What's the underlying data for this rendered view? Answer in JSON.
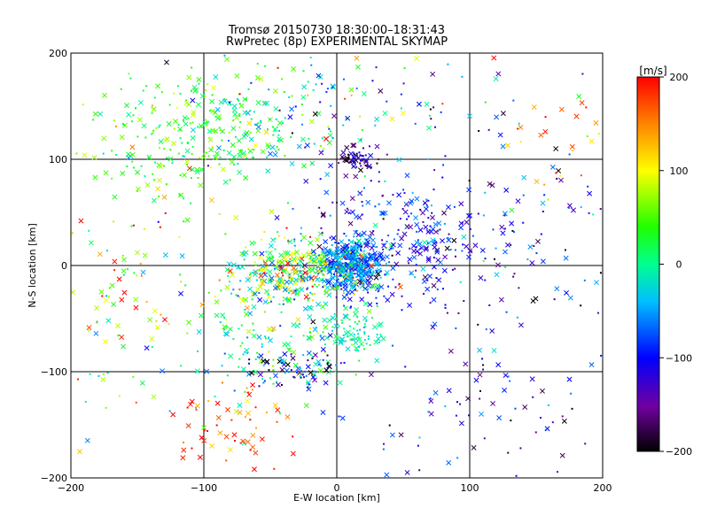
{
  "chart_data": {
    "type": "scatter",
    "title": "Tromsø 20150730 18:30:00–18:31:43",
    "subtitle": "RwPretec (8p) EXPERIMENTAL SKYMAP",
    "xlabel": "E-W location [km]",
    "ylabel": "N-S location [km]",
    "xlim": [
      -200,
      200
    ],
    "ylim": [
      -200,
      200
    ],
    "x_ticks": [
      -200,
      -100,
      0,
      100,
      200
    ],
    "y_ticks": [
      -200,
      -100,
      0,
      100,
      200
    ],
    "x_tick_labels": [
      "−200",
      "−100",
      "0",
      "100",
      "200"
    ],
    "y_tick_labels": [
      "−200",
      "−100",
      "0",
      "100",
      "200"
    ],
    "grid": true,
    "grid_lines": [
      -100,
      0,
      100
    ],
    "colorbar": {
      "label": "[m/s]",
      "range": [
        -200,
        200
      ],
      "ticks": [
        200,
        100,
        0,
        -100,
        -200
      ],
      "tick_labels": [
        "200",
        "100",
        "0",
        "−100",
        "−200"
      ],
      "colormap": "rainbow (black → purple → blue → cyan → green → yellow → red)"
    },
    "marker_types": [
      "x",
      "dot"
    ],
    "clusters": [
      {
        "center": [
          10,
          0
        ],
        "spread": [
          12,
          12
        ],
        "velocity": -55,
        "v_spread": 25,
        "count": 420
      },
      {
        "center": [
          -30,
          -5
        ],
        "spread": [
          25,
          15
        ],
        "velocity": 40,
        "v_spread": 90,
        "count": 320
      },
      {
        "center": [
          40,
          25
        ],
        "spread": [
          35,
          30
        ],
        "velocity": -100,
        "v_spread": 40,
        "count": 240
      },
      {
        "center": [
          -120,
          120
        ],
        "spread": [
          35,
          30
        ],
        "velocity": 40,
        "v_spread": 30,
        "count": 200
      },
      {
        "center": [
          -55,
          130
        ],
        "spread": [
          25,
          25
        ],
        "velocity": 15,
        "v_spread": 35,
        "count": 120
      },
      {
        "center": [
          -45,
          -65
        ],
        "spread": [
          35,
          35
        ],
        "velocity": 10,
        "v_spread": 60,
        "count": 200
      },
      {
        "center": [
          -75,
          -160
        ],
        "spread": [
          20,
          25
        ],
        "velocity": 170,
        "v_spread": 40,
        "count": 60
      },
      {
        "center": [
          15,
          100
        ],
        "spread": [
          10,
          5
        ],
        "velocity": -150,
        "v_spread": 40,
        "count": 60
      },
      {
        "center": [
          -30,
          -95
        ],
        "spread": [
          15,
          10
        ],
        "velocity": -120,
        "v_spread": 70,
        "count": 60
      },
      {
        "center": [
          10,
          -65
        ],
        "spread": [
          12,
          12
        ],
        "velocity": -10,
        "v_spread": 20,
        "count": 80
      },
      {
        "center": [
          110,
          30
        ],
        "spread": [
          55,
          45
        ],
        "velocity": -100,
        "v_spread": 60,
        "count": 150
      },
      {
        "center": [
          110,
          -120
        ],
        "spread": [
          55,
          55
        ],
        "velocity": -110,
        "v_spread": 50,
        "count": 110
      },
      {
        "center": [
          -160,
          -20
        ],
        "spread": [
          30,
          60
        ],
        "velocity": 70,
        "v_spread": 90,
        "count": 120
      },
      {
        "center": [
          10,
          160
        ],
        "spread": [
          60,
          30
        ],
        "velocity": -20,
        "v_spread": 100,
        "count": 110
      },
      {
        "center": [
          170,
          120
        ],
        "spread": [
          20,
          30
        ],
        "velocity": 150,
        "v_spread": 60,
        "count": 30
      }
    ]
  }
}
